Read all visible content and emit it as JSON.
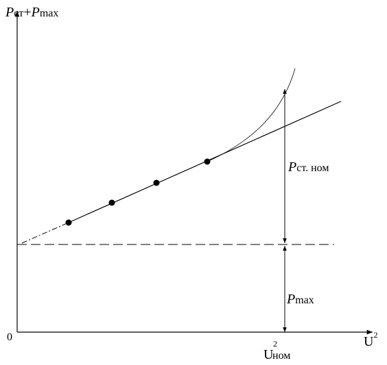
{
  "axes": {
    "y_label": {
      "p1": "P",
      "s1": "ст",
      "plus": "+",
      "p2": "P",
      "s2": "max"
    },
    "x_label": {
      "base": "U",
      "sup": "2"
    },
    "origin": "0"
  },
  "marks": {
    "u_nom": {
      "base": "U",
      "sup": "2",
      "sub": "ном"
    },
    "p_st_nom": {
      "base": "P",
      "sub": "ст. ном"
    },
    "p_max": {
      "base": "P",
      "sub": "max"
    }
  }
}
